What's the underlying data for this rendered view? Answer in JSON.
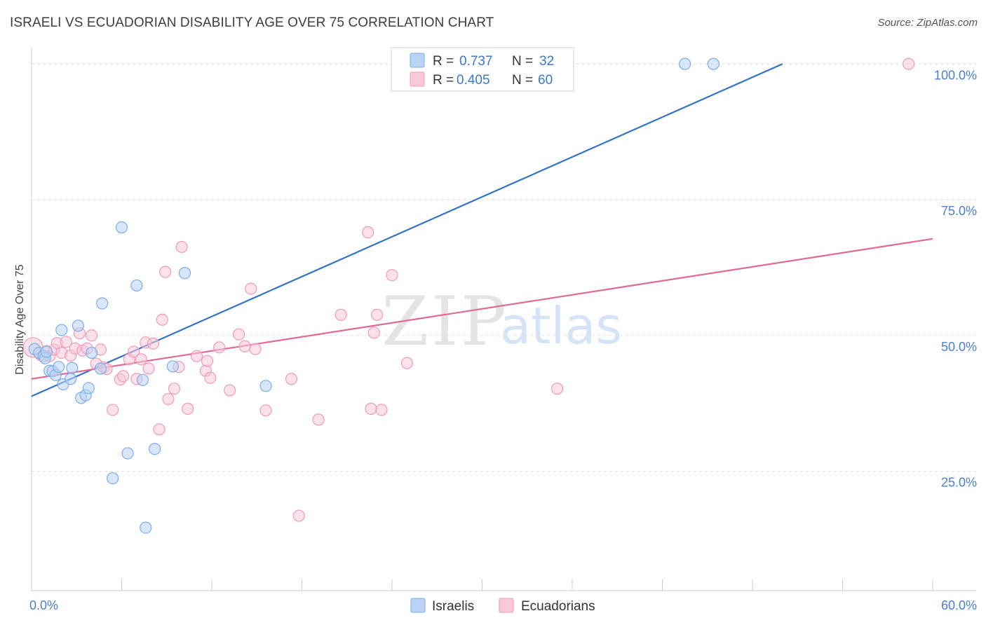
{
  "title": "ISRAELI VS ECUADORIAN DISABILITY AGE OVER 75 CORRELATION CHART",
  "source": "Source: ZipAtlas.com",
  "watermark": {
    "zip": "ZIP",
    "atlas": "atlas"
  },
  "colors": {
    "blue": "#7aaee8",
    "blue_fill": "#b8d3f4",
    "blue_line": "#2f72c8",
    "pink": "#f09ab8",
    "pink_fill": "#f8c8d9",
    "pink_line": "#e06a95",
    "tick_label": "#4a7fd0",
    "grid": "#e2e2e2",
    "axis": "#cccccc"
  },
  "legend": {
    "rows": [
      {
        "r_label": "R = ",
        "r_value": "0.737",
        "n_label": "N = ",
        "n_value": "32"
      },
      {
        "r_label": "R = ",
        "r_value": "0.405",
        "n_label": "N = ",
        "n_value": "60"
      }
    ]
  },
  "chart_data": {
    "type": "scatter",
    "title": "ISRAELI VS ECUADORIAN DISABILITY AGE OVER 75 CORRELATION CHART",
    "xlabel": "",
    "ylabel": "Disability Age Over 75",
    "xlim": [
      0,
      60
    ],
    "ylim": [
      3,
      103
    ],
    "x_tick_labels": [
      "0.0%",
      "60.0%"
    ],
    "y_ticks": [
      25,
      50,
      75,
      100
    ],
    "y_tick_labels": [
      "25.0%",
      "50.0%",
      "75.0%",
      "100.0%"
    ],
    "grid": true,
    "series": [
      {
        "name": "Israelis",
        "color": "#7aaee8",
        "R": 0.737,
        "N": 32,
        "trendline": {
          "x": [
            0,
            50
          ],
          "y": [
            38.8,
            100
          ]
        },
        "points": [
          [
            0.2,
            47.5
          ],
          [
            0.5,
            46.8
          ],
          [
            0.8,
            46.2
          ],
          [
            0.9,
            45.8
          ],
          [
            1.0,
            47.0
          ],
          [
            1.2,
            43.5
          ],
          [
            1.4,
            43.4
          ],
          [
            1.6,
            42.7
          ],
          [
            1.8,
            44.2
          ],
          [
            2.0,
            51.0
          ],
          [
            2.1,
            41.0
          ],
          [
            2.6,
            42.0
          ],
          [
            2.7,
            44.0
          ],
          [
            3.1,
            51.8
          ],
          [
            3.3,
            38.5
          ],
          [
            3.6,
            39.0
          ],
          [
            3.8,
            40.3
          ],
          [
            4.0,
            46.8
          ],
          [
            4.6,
            43.9
          ],
          [
            4.7,
            55.9
          ],
          [
            5.4,
            23.7
          ],
          [
            6.0,
            69.9
          ],
          [
            6.4,
            28.3
          ],
          [
            7.0,
            59.2
          ],
          [
            7.4,
            41.8
          ],
          [
            7.6,
            14.6
          ],
          [
            8.2,
            29.1
          ],
          [
            9.4,
            44.3
          ],
          [
            10.2,
            61.5
          ],
          [
            15.6,
            40.7
          ],
          [
            43.5,
            100
          ],
          [
            45.4,
            100
          ]
        ]
      },
      {
        "name": "Ecuadorians",
        "color": "#f09ab8",
        "R": 0.405,
        "N": 60,
        "trendline": {
          "x": [
            0,
            60
          ],
          "y": [
            42.0,
            67.8
          ]
        },
        "points": [
          [
            0.1,
            47.8
          ],
          [
            0.6,
            46.4
          ],
          [
            1.0,
            47.1
          ],
          [
            1.2,
            46.2
          ],
          [
            1.5,
            47.4
          ],
          [
            1.7,
            48.6
          ],
          [
            2.0,
            46.8
          ],
          [
            2.3,
            48.8
          ],
          [
            2.6,
            46.3
          ],
          [
            2.9,
            47.6
          ],
          [
            3.2,
            50.4
          ],
          [
            3.4,
            47.2
          ],
          [
            3.7,
            47.6
          ],
          [
            4.0,
            50.0
          ],
          [
            4.3,
            44.8
          ],
          [
            4.6,
            47.4
          ],
          [
            4.8,
            44.1
          ],
          [
            5.0,
            43.8
          ],
          [
            5.4,
            36.3
          ],
          [
            5.9,
            41.9
          ],
          [
            6.1,
            42.5
          ],
          [
            6.5,
            45.6
          ],
          [
            6.8,
            47.0
          ],
          [
            7.0,
            42.0
          ],
          [
            7.3,
            45.6
          ],
          [
            7.6,
            48.7
          ],
          [
            7.8,
            43.9
          ],
          [
            8.1,
            48.5
          ],
          [
            8.5,
            32.7
          ],
          [
            8.7,
            52.9
          ],
          [
            8.9,
            61.7
          ],
          [
            9.1,
            38.3
          ],
          [
            9.5,
            40.2
          ],
          [
            9.8,
            44.2
          ],
          [
            10.0,
            66.3
          ],
          [
            10.4,
            36.5
          ],
          [
            11.0,
            46.2
          ],
          [
            11.6,
            43.5
          ],
          [
            11.7,
            45.3
          ],
          [
            11.9,
            42.2
          ],
          [
            12.5,
            47.8
          ],
          [
            13.2,
            39.9
          ],
          [
            13.8,
            50.2
          ],
          [
            14.2,
            48.0
          ],
          [
            14.6,
            58.6
          ],
          [
            14.9,
            47.5
          ],
          [
            15.6,
            36.2
          ],
          [
            17.3,
            42.0
          ],
          [
            17.8,
            16.8
          ],
          [
            19.1,
            34.5
          ],
          [
            20.6,
            53.8
          ],
          [
            22.4,
            69.0
          ],
          [
            22.6,
            36.5
          ],
          [
            22.8,
            50.5
          ],
          [
            23.0,
            53.8
          ],
          [
            23.3,
            36.3
          ],
          [
            24.0,
            61.1
          ],
          [
            25.0,
            44.9
          ],
          [
            35.0,
            40.2
          ],
          [
            58.4,
            100
          ]
        ]
      }
    ],
    "legend_entries": [
      "Israelis",
      "Ecuadorians"
    ]
  }
}
